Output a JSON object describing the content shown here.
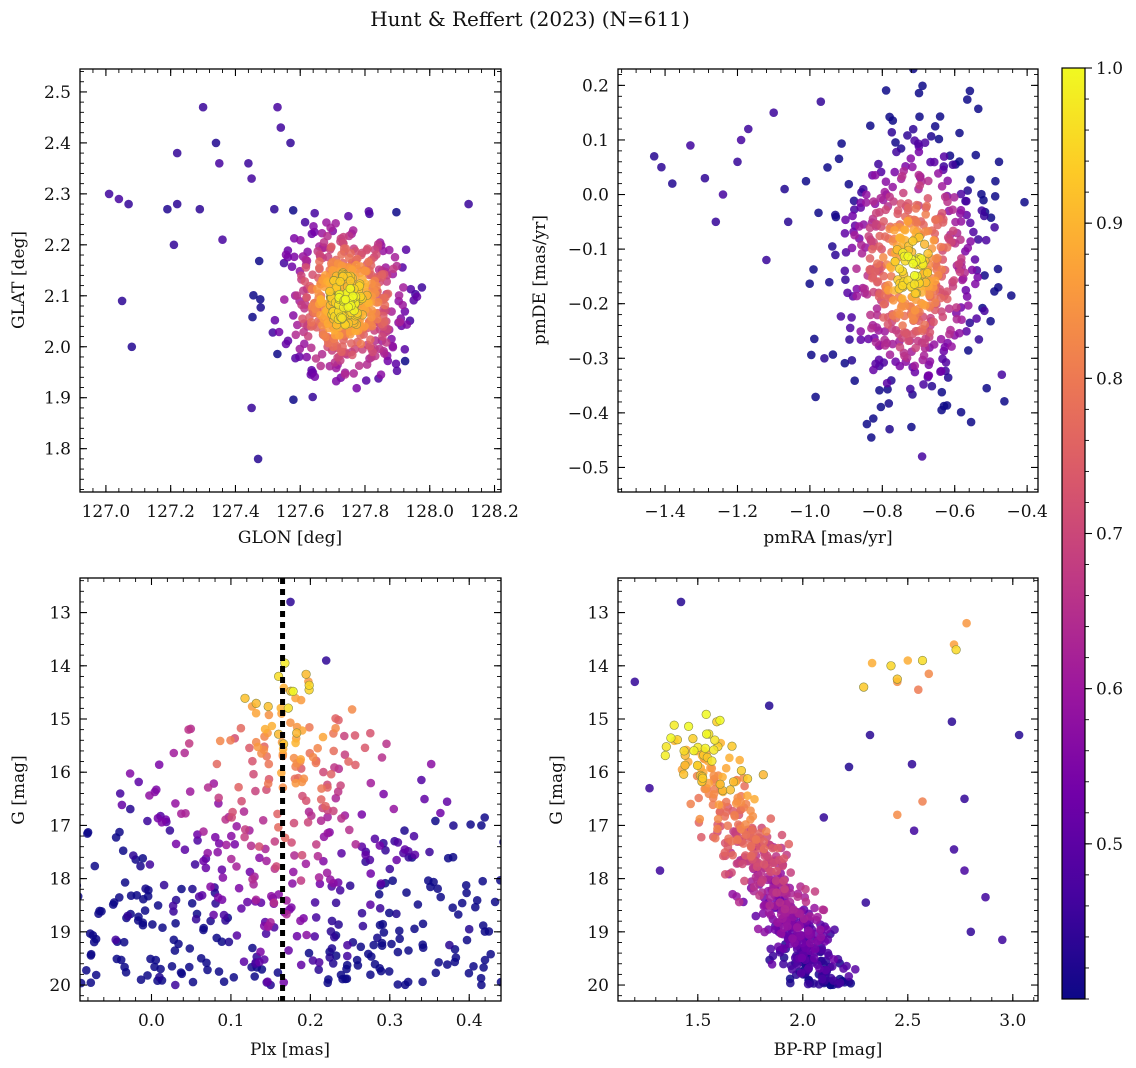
{
  "figure": {
    "title": "Hunt & Reffert (2023) (N=611)"
  },
  "colorbar": {
    "colors": [
      "#0d0887",
      "#46039f",
      "#7201a8",
      "#9c179e",
      "#bd3786",
      "#d8576b",
      "#ed7953",
      "#fb9f3a",
      "#fdca26",
      "#f0f921"
    ],
    "range": [
      0.4,
      1.0
    ],
    "ticks": [
      "0.5",
      "0.6",
      "0.7",
      "0.8",
      "0.9",
      "1.0"
    ]
  },
  "chart_data": [
    {
      "type": "scatter",
      "id": "glon-glat",
      "xlabel": "GLON [deg]",
      "ylabel": "GLAT [deg]",
      "xlim": [
        126.92,
        128.22
      ],
      "ylim": [
        1.715,
        2.545
      ],
      "xticks": [
        "127.0",
        "127.2",
        "127.4",
        "127.6",
        "127.8",
        "128.0",
        "128.2"
      ],
      "yticks": [
        "1.8",
        "1.9",
        "2.0",
        "2.1",
        "2.2",
        "2.3",
        "2.4",
        "2.5"
      ],
      "center": [
        127.74,
        2.09
      ],
      "spread": [
        0.085,
        0.068
      ],
      "outliers": [
        [
          127.01,
          2.3
        ],
        [
          127.04,
          2.29
        ],
        [
          127.07,
          2.28
        ],
        [
          127.05,
          2.09
        ],
        [
          127.08,
          2.0
        ],
        [
          127.22,
          2.38
        ],
        [
          127.22,
          2.28
        ],
        [
          127.3,
          2.47
        ],
        [
          127.34,
          2.4
        ],
        [
          127.35,
          2.36
        ],
        [
          127.44,
          2.36
        ],
        [
          127.45,
          2.33
        ],
        [
          127.53,
          2.47
        ],
        [
          127.54,
          2.43
        ],
        [
          127.57,
          2.4
        ],
        [
          127.45,
          1.88
        ],
        [
          127.47,
          1.78
        ],
        [
          128.12,
          2.28
        ],
        [
          127.21,
          2.2
        ],
        [
          127.36,
          2.21
        ],
        [
          127.29,
          2.27
        ],
        [
          127.52,
          2.27
        ],
        [
          127.19,
          2.27
        ]
      ]
    },
    {
      "type": "scatter",
      "id": "pm",
      "xlabel": "pmRA [mas/yr]",
      "ylabel": "pmDE [mas/yr]",
      "xlim": [
        -1.53,
        -0.37
      ],
      "ylim": [
        -0.545,
        0.23
      ],
      "xticks": [
        "−1.4",
        "−1.2",
        "−1.0",
        "−0.8",
        "−0.6",
        "−0.4"
      ],
      "yticks": [
        "−0.5",
        "−0.4",
        "−0.3",
        "−0.2",
        "−0.1",
        "0.0",
        "0.1",
        "0.2"
      ],
      "center": [
        -0.72,
        -0.13
      ],
      "spread": [
        0.1,
        0.12
      ],
      "outliers": [
        [
          -1.43,
          0.07
        ],
        [
          -1.41,
          0.05
        ],
        [
          -1.38,
          0.02
        ],
        [
          -1.33,
          0.09
        ],
        [
          -1.29,
          0.03
        ],
        [
          -1.24,
          0.0
        ],
        [
          -1.19,
          0.1
        ],
        [
          -1.17,
          0.12
        ],
        [
          -1.1,
          0.15
        ],
        [
          -0.97,
          0.17
        ],
        [
          -1.2,
          0.06
        ],
        [
          -1.12,
          -0.12
        ],
        [
          -1.06,
          -0.05
        ],
        [
          -0.96,
          -0.3
        ],
        [
          -0.78,
          -0.43
        ],
        [
          -0.69,
          -0.48
        ],
        [
          -0.47,
          -0.33
        ],
        [
          -0.49,
          -0.06
        ],
        [
          -1.26,
          -0.05
        ],
        [
          -1.07,
          0.01
        ]
      ]
    },
    {
      "type": "scatter",
      "id": "plx-g",
      "xlabel": "Plx [mas]",
      "ylabel": "G [mag]",
      "xlim": [
        -0.09,
        0.44
      ],
      "ylim": [
        20.3,
        12.35
      ],
      "invert_y": true,
      "xticks": [
        "0.0",
        "0.1",
        "0.2",
        "0.3",
        "0.4"
      ],
      "yticks": [
        "13",
        "14",
        "15",
        "16",
        "17",
        "18",
        "19",
        "20"
      ],
      "vline": 0.165,
      "outliers": [
        [
          0.175,
          12.8
        ],
        [
          0.22,
          13.9
        ],
        [
          0.375,
          19.25
        ],
        [
          0.4,
          18.95
        ],
        [
          -0.045,
          19.15
        ],
        [
          -0.03,
          18.7
        ],
        [
          0.01,
          19.85
        ],
        [
          0.35,
          17.5
        ],
        [
          0.03,
          20.0
        ],
        [
          0.15,
          20.0
        ]
      ]
    },
    {
      "type": "scatter",
      "id": "cmd",
      "xlabel": "BP-RP [mag]",
      "ylabel": "G [mag]",
      "xlim": [
        1.12,
        3.12
      ],
      "ylim": [
        20.3,
        12.35
      ],
      "invert_y": true,
      "xticks": [
        "1.5",
        "2.0",
        "2.5",
        "3.0"
      ],
      "yticks": [
        "13",
        "14",
        "15",
        "16",
        "17",
        "18",
        "19",
        "20"
      ],
      "giants": [
        [
          2.72,
          13.6
        ],
        [
          2.73,
          13.7
        ],
        [
          2.5,
          13.9
        ],
        [
          2.57,
          13.9
        ],
        [
          2.42,
          14.0
        ],
        [
          2.33,
          13.95
        ],
        [
          2.29,
          14.4
        ],
        [
          2.45,
          14.3
        ],
        [
          2.6,
          14.15
        ],
        [
          2.45,
          14.25
        ],
        [
          2.78,
          13.2
        ],
        [
          2.55,
          14.45
        ],
        [
          2.45,
          16.8
        ],
        [
          2.57,
          16.55
        ]
      ],
      "outliers": [
        [
          1.42,
          12.8
        ],
        [
          1.2,
          14.3
        ],
        [
          1.84,
          14.75
        ],
        [
          2.71,
          15.05
        ],
        [
          3.03,
          15.3
        ],
        [
          2.32,
          15.3
        ],
        [
          2.52,
          15.85
        ],
        [
          2.22,
          15.9
        ],
        [
          2.77,
          16.5
        ],
        [
          2.53,
          17.1
        ],
        [
          2.72,
          17.45
        ],
        [
          2.77,
          17.85
        ],
        [
          2.8,
          19.0
        ],
        [
          2.95,
          19.15
        ],
        [
          2.87,
          18.35
        ],
        [
          2.3,
          18.45
        ],
        [
          2.1,
          16.85
        ],
        [
          1.27,
          16.3
        ],
        [
          1.32,
          17.85
        ]
      ]
    }
  ],
  "axes": {
    "glon_glat": {
      "xlabel": "GLON [deg]",
      "ylabel": "GLAT [deg]"
    },
    "pm": {
      "xlabel": "pmRA [mas/yr]",
      "ylabel": "pmDE [mas/yr]"
    },
    "plx_g": {
      "xlabel": "Plx [mas]",
      "ylabel": "G [mag]"
    },
    "cmd": {
      "xlabel": "BP-RP [mag]",
      "ylabel": "G [mag]"
    }
  }
}
